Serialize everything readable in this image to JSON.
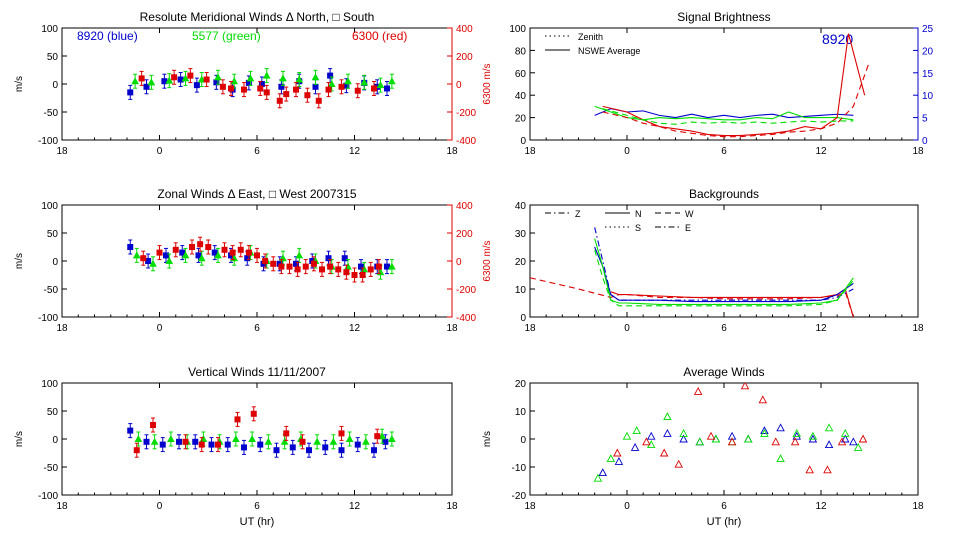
{
  "colors": {
    "blue": "#0000cc",
    "green": "#00dd00",
    "red": "#dd0000",
    "axis": "#000000",
    "right_red": "#dd0000",
    "right_blue": "#0000cc"
  },
  "chart_data": [
    {
      "id": "meridional",
      "type": "scatter",
      "title": "Resolute Meridional Winds Δ North, □ South",
      "ylabel": "m/s",
      "ylim": [
        -100,
        100
      ],
      "yticks": [
        100,
        50,
        0,
        -50,
        -100
      ],
      "xlim": [
        -6,
        18
      ],
      "xticks": [
        "18",
        "0",
        "6",
        "12",
        "18"
      ],
      "xlabel": "",
      "right_axis": {
        "label": "6300 m/s",
        "ticks": [
          "400",
          "200",
          "0",
          "-200",
          "-400"
        ],
        "color": "red"
      },
      "labels": [
        {
          "text": "8920 (blue)",
          "color": "blue"
        },
        {
          "text": "5577 (green)",
          "color": "green"
        },
        {
          "text": "6300 (red)",
          "color": "red"
        }
      ],
      "series": [
        {
          "color": "blue",
          "x": [
            -1.8,
            -0.8,
            0.3,
            1.3,
            2.3,
            3.5,
            4.5,
            5.5,
            6.3,
            7.5,
            8.6,
            9.6,
            10.5,
            11.5,
            12.6,
            13.4,
            14.0
          ],
          "y": [
            -15,
            -5,
            5,
            8,
            -2,
            3,
            -10,
            2,
            0,
            -5,
            5,
            -5,
            15,
            -3,
            2,
            -5,
            -8
          ]
        },
        {
          "color": "green",
          "x": [
            -1.5,
            -0.5,
            0.6,
            1.6,
            2.6,
            3.6,
            4.6,
            5.6,
            6.6,
            7.6,
            8.6,
            9.6,
            10.6,
            11.6,
            12.6,
            13.6,
            14.3
          ],
          "y": [
            5,
            3,
            6,
            10,
            8,
            12,
            5,
            10,
            15,
            10,
            8,
            12,
            0,
            5,
            3,
            -2,
            5
          ]
        },
        {
          "color": "red",
          "x": [
            -1.1,
            0.9,
            1.9,
            2.9,
            3.9,
            4.4,
            5.2,
            6.2,
            6.6,
            7.4,
            7.8,
            8.4,
            9.1,
            9.8,
            10.4,
            11.2,
            12.2,
            13.2
          ],
          "y": [
            10,
            12,
            15,
            8,
            -5,
            -8,
            -10,
            -8,
            -15,
            -30,
            -18,
            -10,
            -20,
            -30,
            -10,
            -5,
            -12,
            -8
          ]
        }
      ]
    },
    {
      "id": "zonal",
      "type": "scatter",
      "title": "Zonal Winds Δ East, □ West 2007315",
      "ylabel": "m/s",
      "ylim": [
        -100,
        100
      ],
      "yticks": [
        100,
        50,
        0,
        -50,
        -100
      ],
      "xlim": [
        -6,
        18
      ],
      "xticks": [
        "18",
        "0",
        "6",
        "12",
        "18"
      ],
      "xlabel": "",
      "right_axis": {
        "label": "6300 m/s",
        "ticks": [
          "400",
          "200",
          "0",
          "-200",
          "-400"
        ],
        "color": "red"
      },
      "labels": [],
      "series": [
        {
          "color": "blue",
          "x": [
            -1.8,
            -0.7,
            0.4,
            1.4,
            2.4,
            3.4,
            4.4,
            5.4,
            6.4,
            7.4,
            8.4,
            9.4,
            10.4,
            11.4,
            12.4,
            13.4,
            14.0
          ],
          "y": [
            25,
            0,
            10,
            15,
            10,
            15,
            10,
            5,
            -5,
            -5,
            -5,
            0,
            5,
            5,
            -10,
            -10,
            -10
          ]
        },
        {
          "color": "green",
          "x": [
            -1.4,
            -0.4,
            0.6,
            1.6,
            2.6,
            3.6,
            4.6,
            5.6,
            6.6,
            7.6,
            8.6,
            9.6,
            10.6,
            11.6,
            12.6,
            13.6,
            14.3
          ],
          "y": [
            10,
            -5,
            0,
            10,
            5,
            10,
            5,
            15,
            0,
            5,
            10,
            0,
            -10,
            -10,
            -15,
            -20,
            -10
          ]
        },
        {
          "color": "red",
          "x": [
            -1.0,
            0.0,
            1.0,
            2.0,
            2.5,
            3.0,
            4.0,
            4.5,
            5.0,
            5.5,
            6.0,
            6.5,
            7.0,
            7.5,
            8.0,
            8.5,
            9.0,
            9.5,
            10.0,
            10.5,
            11.0,
            11.5,
            12.0,
            12.5,
            13.0,
            13.5
          ],
          "y": [
            5,
            15,
            20,
            25,
            30,
            25,
            20,
            15,
            20,
            15,
            10,
            0,
            -5,
            -10,
            -10,
            -15,
            -10,
            -5,
            -15,
            -10,
            -15,
            -20,
            -25,
            -25,
            -15,
            -10
          ]
        }
      ]
    },
    {
      "id": "vertical",
      "type": "scatter",
      "title": "Vertical Winds 11/11/2007",
      "ylabel": "m/s",
      "ylim": [
        -100,
        100
      ],
      "yticks": [
        100,
        50,
        0,
        -50,
        -100
      ],
      "xlim": [
        -6,
        18
      ],
      "xticks": [
        "18",
        "0",
        "6",
        "12",
        "18"
      ],
      "xlabel": "UT (hr)",
      "labels": [],
      "series": [
        {
          "color": "blue",
          "x": [
            -1.8,
            -0.8,
            0.2,
            1.2,
            2.2,
            3.2,
            4.2,
            5.2,
            6.2,
            7.2,
            8.2,
            9.2,
            10.2,
            11.2,
            12.2,
            13.2,
            13.9
          ],
          "y": [
            15,
            -5,
            -10,
            -5,
            -5,
            -10,
            -10,
            -15,
            -10,
            -20,
            -15,
            -20,
            -15,
            -20,
            -10,
            -20,
            -5
          ]
        },
        {
          "color": "green",
          "x": [
            -1.3,
            -0.3,
            0.7,
            1.7,
            2.7,
            3.7,
            4.7,
            5.7,
            6.7,
            7.7,
            8.7,
            9.7,
            10.7,
            11.7,
            12.7,
            13.7,
            14.3
          ],
          "y": [
            0,
            -5,
            0,
            -5,
            0,
            -5,
            0,
            0,
            -5,
            -5,
            0,
            -5,
            -5,
            0,
            -5,
            5,
            0
          ]
        },
        {
          "color": "red",
          "x": [
            -1.4,
            -0.4,
            1.6,
            2.6,
            3.6,
            4.8,
            5.8,
            7.8,
            8.8,
            11.2,
            13.4
          ],
          "y": [
            -20,
            25,
            -5,
            -10,
            -10,
            35,
            45,
            10,
            -5,
            10,
            5
          ]
        }
      ]
    },
    {
      "id": "brightness",
      "type": "line",
      "title": "Signal Brightness",
      "ylabel": "",
      "ylim": [
        0,
        100
      ],
      "yticks": [
        100,
        80,
        60,
        40,
        20,
        0
      ],
      "xlim": [
        -6,
        18
      ],
      "xticks": [
        "18",
        "0",
        "6",
        "12",
        "18"
      ],
      "xlabel": "",
      "right_axis": {
        "label": "",
        "ticks": [
          "25",
          "20",
          "15",
          "10",
          "5",
          "0"
        ],
        "color": "blue"
      },
      "annotation": {
        "text": "8920",
        "color": "blue"
      },
      "legend": [
        {
          "text": "Zenith",
          "style": "dotted"
        },
        {
          "text": "NSWE Average",
          "style": "solid"
        }
      ],
      "series": [
        {
          "color": "blue",
          "style": "solid",
          "x": [
            -2,
            -1,
            0,
            1,
            2,
            3,
            4,
            5,
            6,
            7,
            8,
            9,
            10,
            11,
            12,
            13,
            14
          ],
          "y": [
            22,
            28,
            25,
            26,
            22,
            20,
            23,
            20,
            22,
            20,
            22,
            23,
            20,
            21,
            22,
            23,
            22
          ]
        },
        {
          "color": "green",
          "style": "solid",
          "x": [
            -2,
            -1,
            0,
            1,
            2,
            3,
            4,
            5,
            6,
            7,
            8,
            9,
            10,
            11,
            12,
            13,
            14
          ],
          "y": [
            30,
            25,
            20,
            18,
            20,
            19,
            20,
            19,
            18,
            18,
            20,
            19,
            25,
            20,
            20,
            20,
            18
          ]
        },
        {
          "color": "red",
          "style": "solid",
          "x": [
            -1.5,
            0,
            1,
            2,
            3,
            4,
            5,
            6,
            7,
            8,
            9,
            10,
            11,
            12,
            13,
            13.7,
            14.7
          ],
          "y": [
            30,
            25,
            18,
            12,
            10,
            8,
            5,
            4,
            4,
            5,
            6,
            8,
            12,
            10,
            20,
            95,
            40
          ]
        },
        {
          "color": "red",
          "style": "dashed",
          "x": [
            -1.5,
            0,
            1,
            2,
            3,
            4,
            5,
            6,
            7,
            8,
            9,
            10,
            11,
            12,
            13,
            14,
            15
          ],
          "y": [
            25,
            20,
            15,
            12,
            8,
            6,
            4,
            3,
            3,
            4,
            5,
            7,
            8,
            10,
            15,
            30,
            70
          ]
        },
        {
          "color": "green",
          "style": "dashed",
          "x": [
            -1.5,
            0,
            1,
            2,
            3,
            4,
            5,
            6,
            7,
            8,
            9,
            10,
            11,
            12,
            13,
            14
          ],
          "y": [
            28,
            22,
            18,
            15,
            14,
            16,
            15,
            16,
            15,
            16,
            15,
            16,
            17,
            16,
            17,
            17
          ]
        }
      ]
    },
    {
      "id": "backgrounds",
      "type": "line",
      "title": "Backgrounds",
      "ylabel": "",
      "ylim": [
        0,
        40
      ],
      "yticks": [
        40,
        30,
        20,
        10,
        0
      ],
      "xlim": [
        -6,
        18
      ],
      "xticks": [
        "18",
        "0",
        "6",
        "12",
        "18"
      ],
      "xlabel": "",
      "legend": [
        {
          "text": "Z",
          "style": "dashdot"
        },
        {
          "text": "N",
          "style": "solid"
        },
        {
          "text": "W",
          "style": "dashed"
        },
        {
          "text": "S",
          "style": "dotted"
        },
        {
          "text": "E",
          "style": "dashdot"
        }
      ],
      "series": [
        {
          "color": "red",
          "style": "dashed",
          "x": [
            -6,
            -3,
            -1,
            -0.5,
            0,
            2,
            4,
            6,
            8,
            10,
            12,
            13,
            13.5,
            14
          ],
          "y": [
            14,
            10,
            7,
            8,
            8,
            7,
            7,
            6.5,
            6.5,
            6.5,
            7,
            7.5,
            9,
            0
          ]
        },
        {
          "color": "red",
          "style": "solid",
          "x": [
            -1,
            -0.5,
            0,
            2,
            4,
            6,
            8,
            10,
            12,
            13,
            13.5,
            14
          ],
          "y": [
            9,
            8,
            8,
            7.5,
            7,
            7,
            7,
            7,
            7,
            8,
            10,
            0
          ]
        },
        {
          "color": "blue",
          "style": "dashdot",
          "x": [
            -2,
            -1.5,
            -1,
            -0.5,
            0,
            2,
            4,
            6,
            8,
            10,
            12,
            13,
            14
          ],
          "y": [
            32,
            20,
            8,
            6,
            6,
            6,
            6,
            6,
            6,
            6,
            6,
            7,
            10
          ]
        },
        {
          "color": "blue",
          "style": "solid",
          "x": [
            -2,
            -1.5,
            -1,
            -0.5,
            0,
            2,
            4,
            6,
            8,
            10,
            12,
            13,
            14
          ],
          "y": [
            25,
            18,
            8,
            6,
            6,
            6,
            5.5,
            5.5,
            5.5,
            5.5,
            6,
            8,
            12
          ]
        },
        {
          "color": "green",
          "style": "solid",
          "x": [
            -2,
            -1.5,
            -1,
            -0.5,
            0,
            2,
            4,
            6,
            8,
            10,
            12,
            13,
            14
          ],
          "y": [
            28,
            18,
            6,
            5,
            5,
            4.5,
            4.5,
            4.5,
            4.5,
            4.5,
            5,
            6,
            14
          ]
        },
        {
          "color": "green",
          "style": "dashed",
          "x": [
            -2,
            -1.5,
            -1,
            -0.5,
            0,
            2,
            4,
            6,
            8,
            10,
            12,
            13,
            14
          ],
          "y": [
            24,
            14,
            6,
            4,
            4,
            4,
            4,
            4,
            4,
            4,
            4.5,
            6,
            13
          ]
        }
      ]
    },
    {
      "id": "average",
      "type": "scatter",
      "title": "Average Winds",
      "ylabel": "m/s",
      "ylim": [
        -20,
        20
      ],
      "yticks": [
        20,
        10,
        0,
        -10,
        -20
      ],
      "xlim": [
        -6,
        18
      ],
      "xticks": [
        "18",
        "0",
        "6",
        "12",
        "18"
      ],
      "xlabel": "UT (hr)",
      "series": [
        {
          "color": "blue",
          "x": [
            -1.5,
            -0.5,
            0.5,
            1.5,
            2.5,
            3.5,
            4.5,
            5.5,
            6.5,
            7.5,
            8.5,
            9.5,
            10.5,
            11.5,
            12.5,
            13.5,
            14.0
          ],
          "y": [
            -12,
            -8,
            -3,
            1,
            2,
            0,
            -1,
            0,
            1,
            0,
            3,
            4,
            1,
            0,
            -2,
            0,
            -1
          ]
        },
        {
          "color": "green",
          "x": [
            -1.8,
            -1.0,
            0.0,
            0.6,
            1.5,
            2.5,
            3.5,
            4.5,
            5.5,
            6.5,
            7.5,
            8.5,
            9.5,
            10.5,
            11.5,
            12.5,
            13.5,
            14.3
          ],
          "y": [
            -14,
            -7,
            1,
            3,
            -2,
            8,
            2,
            -1,
            0,
            -1,
            0,
            2,
            -7,
            2,
            1,
            4,
            2,
            -3
          ]
        },
        {
          "color": "red",
          "x": [
            -0.6,
            1.2,
            2.3,
            3.2,
            4.4,
            5.2,
            6.5,
            7.3,
            8.4,
            9.2,
            10.4,
            11.3,
            12.4,
            13.3,
            14.6
          ],
          "y": [
            -5,
            -1,
            -5,
            -9,
            17,
            1,
            -1,
            19,
            14,
            -1,
            -1,
            -11,
            -11,
            -1,
            0
          ]
        }
      ]
    }
  ]
}
